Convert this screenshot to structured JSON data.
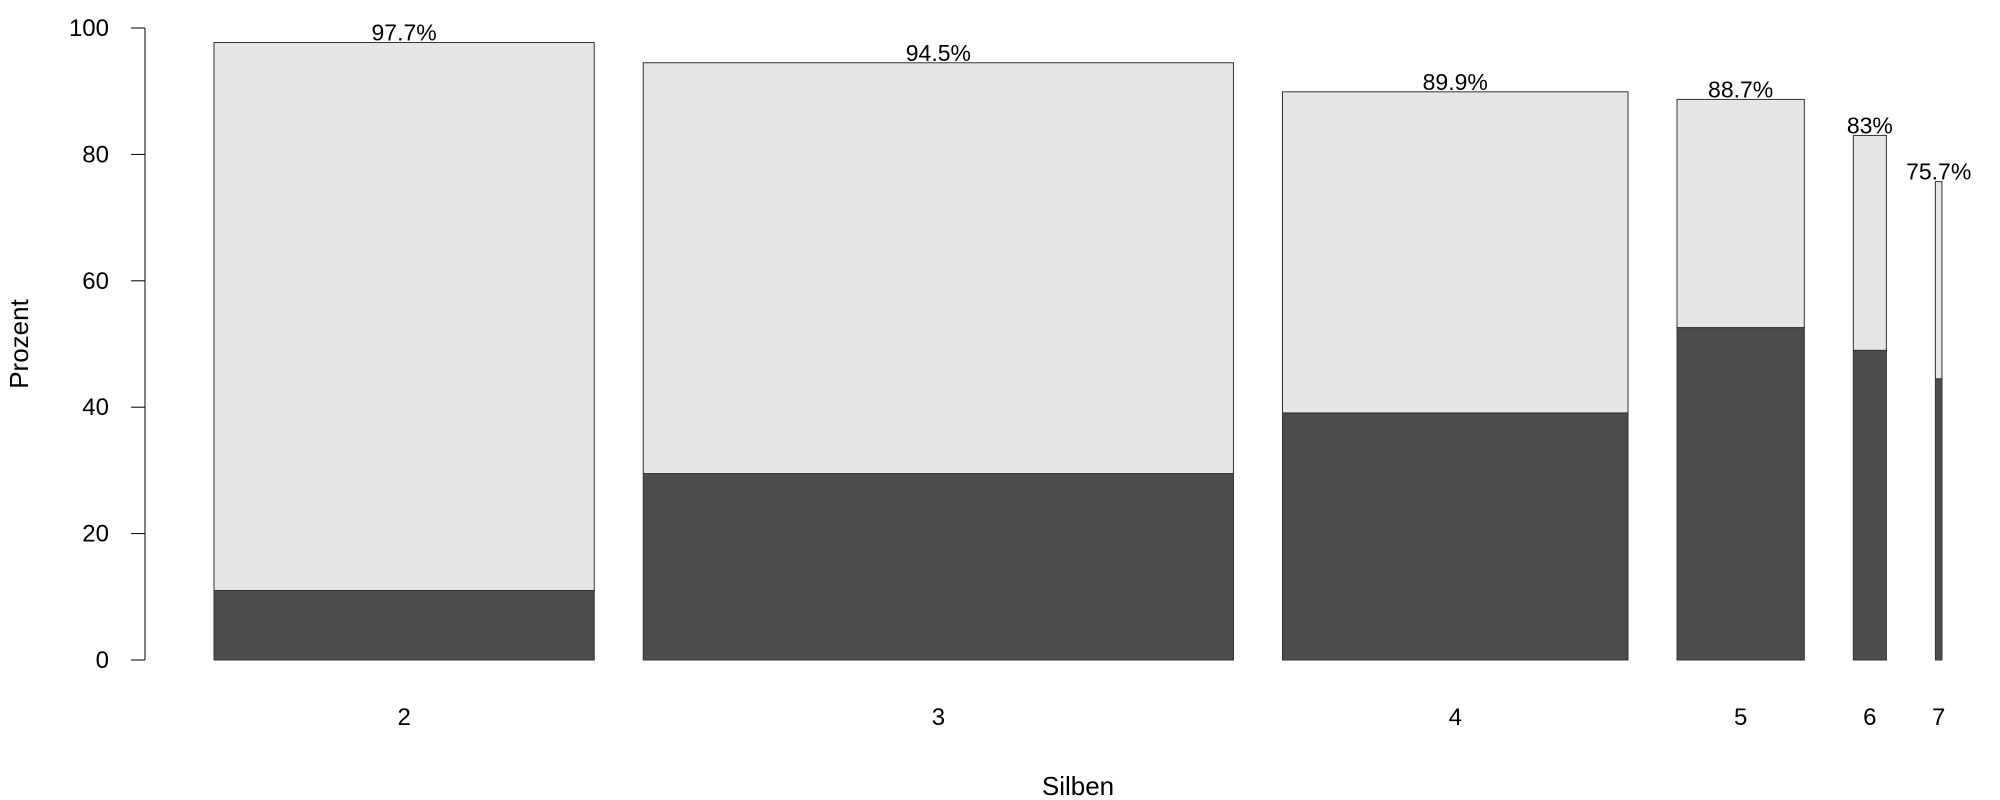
{
  "chart_data": {
    "type": "bar",
    "stacked": true,
    "variable_width": true,
    "categories": [
      "2",
      "3",
      "4",
      "5",
      "6",
      "7"
    ],
    "relative_widths": [
      0.23,
      0.357,
      0.209,
      0.077,
      0.02,
      0.004
    ],
    "series": [
      {
        "values": [
          11.0,
          29.5,
          39.1,
          52.6,
          49.0,
          44.5
        ],
        "color": "#4d4d4d"
      },
      {
        "values": [
          86.7,
          65.0,
          50.8,
          36.1,
          34.0,
          31.2
        ],
        "color": "#e6e6e6"
      }
    ],
    "data_labels": [
      "97.7%",
      "94.5%",
      "89.9%",
      "88.7%",
      "83%",
      "75.7%"
    ],
    "xlabel": "Silben",
    "ylabel": "Prozent",
    "ylim": [
      0,
      100
    ],
    "yticks": [
      "0",
      "20",
      "40",
      "60",
      "80",
      "100"
    ],
    "grid": false,
    "legend": "none"
  }
}
